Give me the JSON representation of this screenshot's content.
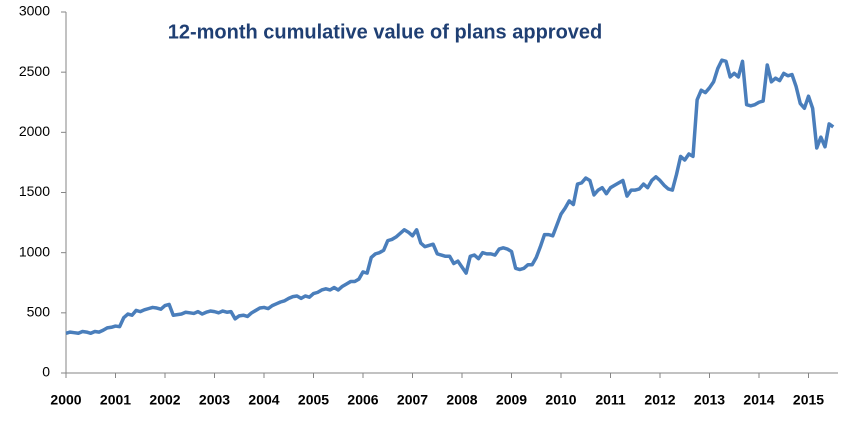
{
  "chart_data": {
    "type": "line",
    "title": "12-month cumulative value of plans approved",
    "categories": [
      "2000",
      null,
      null,
      null,
      null,
      null,
      null,
      null,
      null,
      null,
      null,
      null,
      "2001",
      null,
      null,
      null,
      null,
      null,
      null,
      null,
      null,
      null,
      null,
      null,
      "2002",
      null,
      null,
      null,
      null,
      null,
      null,
      null,
      null,
      null,
      null,
      null,
      "2003",
      null,
      null,
      null,
      null,
      null,
      null,
      null,
      null,
      null,
      null,
      null,
      "2004",
      null,
      null,
      null,
      null,
      null,
      null,
      null,
      null,
      null,
      null,
      null,
      "2005",
      null,
      null,
      null,
      null,
      null,
      null,
      null,
      null,
      null,
      null,
      null,
      "2006",
      null,
      null,
      null,
      null,
      null,
      null,
      null,
      null,
      null,
      null,
      null,
      "2007",
      null,
      null,
      null,
      null,
      null,
      null,
      null,
      null,
      null,
      null,
      null,
      "2008",
      null,
      null,
      null,
      null,
      null,
      null,
      null,
      null,
      null,
      null,
      null,
      "2009",
      null,
      null,
      null,
      null,
      null,
      null,
      null,
      null,
      null,
      null,
      null,
      "2010",
      null,
      null,
      null,
      null,
      null,
      null,
      null,
      null,
      null,
      null,
      null,
      "2011",
      null,
      null,
      null,
      null,
      null,
      null,
      null,
      null,
      null,
      null,
      null,
      "2012",
      null,
      null,
      null,
      null,
      null,
      null,
      null,
      null,
      null,
      null,
      null,
      "2013",
      null,
      null,
      null,
      null,
      null,
      null,
      null,
      null,
      null,
      null,
      null,
      "2014",
      null,
      null,
      null,
      null,
      null,
      null,
      null,
      null,
      null,
      null,
      null,
      "2015",
      null,
      null,
      null,
      null,
      null,
      null
    ],
    "series": [
      {
        "color": "#4a7ebb",
        "values": [
          330,
          340,
          335,
          330,
          345,
          340,
          330,
          345,
          340,
          355,
          375,
          380,
          390,
          385,
          460,
          490,
          480,
          520,
          510,
          525,
          535,
          545,
          540,
          530,
          560,
          570,
          480,
          485,
          490,
          505,
          500,
          495,
          510,
          490,
          505,
          515,
          510,
          500,
          515,
          505,
          510,
          450,
          475,
          480,
          470,
          500,
          520,
          540,
          545,
          535,
          560,
          575,
          590,
          600,
          620,
          635,
          640,
          620,
          640,
          630,
          660,
          670,
          690,
          700,
          690,
          710,
          690,
          720,
          740,
          760,
          760,
          780,
          840,
          830,
          960,
          990,
          1000,
          1020,
          1100,
          1110,
          1130,
          1160,
          1190,
          1170,
          1140,
          1190,
          1080,
          1050,
          1060,
          1070,
          990,
          980,
          970,
          970,
          910,
          930,
          880,
          830,
          970,
          980,
          950,
          1000,
          990,
          990,
          980,
          1030,
          1040,
          1030,
          1010,
          870,
          860,
          870,
          900,
          900,
          960,
          1050,
          1150,
          1150,
          1140,
          1230,
          1320,
          1370,
          1430,
          1400,
          1570,
          1580,
          1620,
          1600,
          1480,
          1520,
          1540,
          1490,
          1540,
          1560,
          1580,
          1600,
          1470,
          1520,
          1520,
          1530,
          1570,
          1540,
          1600,
          1630,
          1600,
          1560,
          1530,
          1520,
          1650,
          1800,
          1770,
          1820,
          1800,
          2270,
          2350,
          2330,
          2370,
          2420,
          2530,
          2600,
          2590,
          2460,
          2490,
          2460,
          2590,
          2230,
          2220,
          2230,
          2250,
          2260,
          2560,
          2420,
          2450,
          2430,
          2490,
          2470,
          2480,
          2380,
          2240,
          2200,
          2300,
          2200,
          1870,
          1960,
          1880,
          2070,
          2045
        ]
      }
    ],
    "ylim": [
      0,
      3000
    ],
    "yticks": [
      0,
      500,
      1000,
      1500,
      2000,
      2500,
      3000
    ],
    "grid": false
  }
}
